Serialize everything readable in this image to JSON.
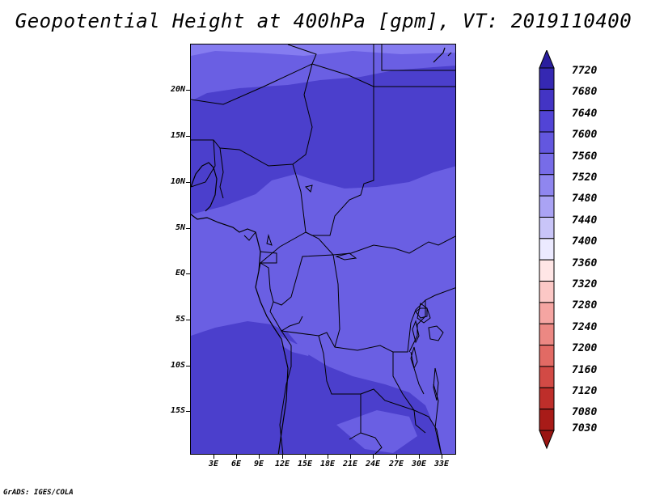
{
  "title": "Geopotential Height at 400hPa [gpm], VT: 2019110400",
  "credit": "GrADS: IGES/COLA",
  "map": {
    "lat_labels": [
      "20N",
      "15N",
      "10N",
      "5N",
      "EQ",
      "5S",
      "10S",
      "15S"
    ],
    "lon_labels": [
      "3E",
      "6E",
      "9E",
      "12E",
      "15E",
      "18E",
      "21E",
      "24E",
      "27E",
      "30E",
      "33E"
    ],
    "lon_range": [
      0,
      35
    ],
    "lat_range": [
      -19.5,
      24.5
    ],
    "fill_colors": {
      "band_7560_7600": "#6a5fe3",
      "band_7600_7640": "#4b3fcc",
      "band_7520_7560": "#857cf0"
    }
  },
  "colorbar": {
    "labels": [
      "7720",
      "7680",
      "7640",
      "7600",
      "7560",
      "7520",
      "7480",
      "7440",
      "7400",
      "7360",
      "7320",
      "7280",
      "7240",
      "7200",
      "7160",
      "7120",
      "7080",
      "7030"
    ],
    "colors": [
      "#2a1e9e",
      "#3528b2",
      "#4334c4",
      "#5244d6",
      "#6357df",
      "#776ce8",
      "#8f86ef",
      "#aaa3f4",
      "#c9c5f8",
      "#eceaff",
      "#ffe6e6",
      "#fcc8c6",
      "#f5a5a2",
      "#ec8883",
      "#e26a64",
      "#d24a45",
      "#be2e2a",
      "#a81b18",
      "#9a1512"
    ]
  }
}
